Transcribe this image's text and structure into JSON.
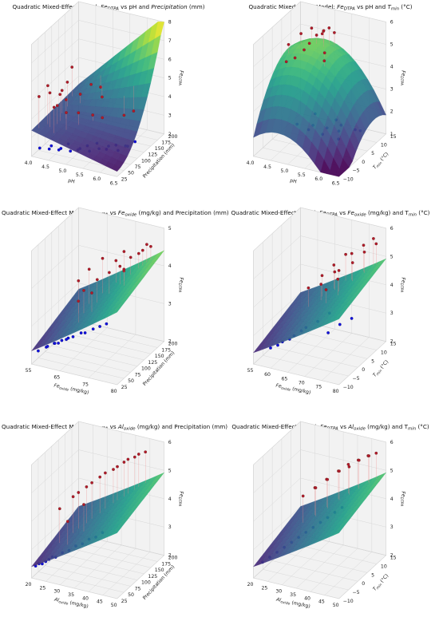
{
  "colors": {
    "red_points": "#b2182b",
    "red_points_edge": "#5a2a1a",
    "blue_points": "#1010e0",
    "teal_points": "#1f8f8f",
    "colormap": "viridis",
    "pane_fill": "#f2f2f2",
    "grid": "#d8d8d8"
  },
  "chart_data": [
    {
      "type": "surface3d",
      "title": {
        "pre": "Quadratic Mixed-Effect Model: ",
        "v1": "Fe",
        "v1sub": "DTPA",
        "mid": " vs pH and ",
        "v2": "Precipitation",
        "v2sub": "",
        "post": " (mm)"
      },
      "xlabel": "pH",
      "xlabel_sub": "",
      "xlabel_post": "",
      "ylabel": "Precipitation (mm)",
      "ylabel_sub": "",
      "ylabel_post": "",
      "zlabel": "Fe",
      "zlabel_sub": "DTPA",
      "x_ticks": [
        "4.0",
        "4.5",
        "5.0",
        "5.5",
        "6.0",
        "6.5"
      ],
      "y_ticks": [
        "25",
        "50",
        "75",
        "100",
        "125",
        "150",
        "175",
        "200"
      ],
      "z_ticks": [
        "2",
        "3",
        "4",
        "5",
        "6",
        "7",
        "8"
      ],
      "xlim": [
        4.0,
        6.5
      ],
      "ylim": [
        25,
        200
      ],
      "zlim": [
        1.5,
        8
      ],
      "surface": {
        "z_low_high_x": "quadratic",
        "corners": {
          "x0y0": 2.4,
          "x1y0": 1.8,
          "x0y1": 2.6,
          "x1y1": 7.8,
          "mid": 3.0
        }
      },
      "points": [
        {
          "group": "observed_high",
          "color": "red",
          "x": [
            4.1,
            4.2,
            4.3,
            4.4,
            4.5,
            4.3,
            4.2,
            4.6,
            4.8,
            5.0,
            5.2,
            4.4,
            4.5,
            4.7,
            4.9,
            5.4,
            5.8,
            6.0,
            4.3,
            4.6
          ],
          "y": [
            40,
            60,
            55,
            80,
            90,
            120,
            150,
            170,
            180,
            160,
            100,
            70,
            45,
            65,
            85,
            110,
            140,
            150,
            100,
            130
          ],
          "z": [
            4.8,
            5.2,
            4.9,
            4.5,
            4.1,
            4.6,
            5.0,
            3.9,
            3.7,
            3.5,
            3.4,
            4.0,
            4.3,
            3.8,
            3.6,
            3.2,
            3.1,
            3.3,
            4.4,
            3.9
          ]
        },
        {
          "group": "observed_low",
          "color": "blue",
          "x": [
            4.2,
            4.4,
            4.6,
            4.8,
            5.0,
            5.2,
            5.4,
            5.6,
            5.8,
            6.0,
            6.2,
            4.5,
            4.7,
            4.9,
            5.1,
            5.3,
            5.5,
            5.7,
            5.9,
            6.1
          ],
          "y": [
            30,
            40,
            50,
            60,
            70,
            80,
            90,
            100,
            110,
            120,
            130,
            35,
            45,
            55,
            65,
            75,
            85,
            95,
            105,
            115
          ],
          "z": [
            2.0,
            1.9,
            1.8,
            2.1,
            1.7,
            1.9,
            2.0,
            1.6,
            1.8,
            1.7,
            1.9,
            2.2,
            2.0,
            1.8,
            1.9,
            1.7,
            1.8,
            1.9,
            1.6,
            1.8
          ]
        }
      ]
    },
    {
      "type": "surface3d",
      "title": {
        "pre": "Quadratic Mixed-Effect Model: ",
        "v1": "Fe",
        "v1sub": "DTPA",
        "mid": " vs pH and ",
        "v2": "T",
        "v2sub": "min",
        "post": " (°C)"
      },
      "xlabel": "pH",
      "xlabel_sub": "",
      "xlabel_post": "",
      "ylabel": "T",
      "ylabel_sub": "min",
      "ylabel_post": " (°C)",
      "zlabel": "Fe",
      "zlabel_sub": "DTPA",
      "x_ticks": [
        "4.0",
        "4.5",
        "5.0",
        "5.5",
        "6.0",
        "6.5"
      ],
      "y_ticks": [
        "−10",
        "−5",
        "0",
        "5",
        "10",
        "15"
      ],
      "z_ticks": [
        "1",
        "2",
        "3",
        "4",
        "5",
        "6"
      ],
      "xlim": [
        4.0,
        6.5
      ],
      "ylim": [
        -10,
        15
      ],
      "zlim": [
        0.5,
        6.5
      ],
      "surface": {
        "shape": "dome",
        "peak": 5.4,
        "edge_low": 1.2
      },
      "points": [
        {
          "group": "observed_high",
          "color": "red",
          "x": [
            4.2,
            4.4,
            4.6,
            4.8,
            5.0,
            5.2,
            4.5,
            4.7,
            4.9,
            5.1,
            5.3,
            4.3,
            4.6,
            4.8,
            5.0
          ],
          "y": [
            5,
            8,
            10,
            12,
            9,
            6,
            3,
            7,
            11,
            13,
            4,
            2,
            6,
            9,
            12
          ],
          "z": [
            5.2,
            5.6,
            5.8,
            5.4,
            5.9,
            5.1,
            4.8,
            5.3,
            5.7,
            5.5,
            4.9,
            4.6,
            5.0,
            5.6,
            5.8
          ]
        },
        {
          "group": "observed_low",
          "color": "blue",
          "x": [
            5.0,
            5.3,
            5.6,
            5.9,
            6.2,
            5.5,
            5.8,
            6.1,
            5.2,
            5.7,
            6.0,
            6.3
          ],
          "y": [
            -5,
            -2,
            0,
            2,
            4,
            -8,
            -6,
            -3,
            1,
            3,
            -1,
            5
          ],
          "z": [
            2.2,
            2.0,
            1.8,
            1.9,
            1.6,
            2.4,
            2.1,
            1.7,
            2.3,
            2.0,
            1.9,
            1.5
          ]
        }
      ]
    },
    {
      "type": "surface3d",
      "title": {
        "pre": "Quadratic Mixed-Effect Model: ",
        "v1": "Fe",
        "v1sub": "DTPA",
        "mid": " vs ",
        "v2": "Fe",
        "v2sub": "oxide",
        "post": " (mg/kg) and Precipitation (mm)"
      },
      "xlabel": "Fe",
      "xlabel_sub": "oxide",
      "xlabel_post": " (mg/kg)",
      "ylabel": "Precipitation (mm)",
      "ylabel_sub": "",
      "ylabel_post": "",
      "zlabel": "Fe",
      "zlabel_sub": "DTPA",
      "x_ticks": [
        "55",
        "65",
        "75",
        "80"
      ],
      "y_ticks": [
        "25",
        "50",
        "75",
        "100",
        "125",
        "150",
        "175",
        "200"
      ],
      "z_ticks": [
        "2",
        "3",
        "4",
        "5"
      ],
      "xlim": [
        50,
        82
      ],
      "ylim": [
        25,
        200
      ],
      "zlim": [
        1.5,
        5.8
      ],
      "surface": {
        "shape": "plane",
        "low": 2.0,
        "high": 4.8
      },
      "points": [
        {
          "group": "observed_high",
          "color": "red",
          "x": [
            60,
            62,
            65,
            68,
            70,
            72,
            74,
            76,
            78,
            63,
            66,
            69,
            71,
            73,
            75,
            77,
            64,
            67
          ],
          "y": [
            100,
            120,
            140,
            160,
            170,
            150,
            130,
            180,
            190,
            90,
            110,
            125,
            145,
            165,
            175,
            185,
            60,
            80
          ],
          "z": [
            4.2,
            4.5,
            4.8,
            4.6,
            4.9,
            4.4,
            4.7,
            5.0,
            5.1,
            4.0,
            4.3,
            4.5,
            4.6,
            4.8,
            4.9,
            5.2,
            3.9,
            4.1
          ]
        },
        {
          "group": "observed_low",
          "color": "blue",
          "x": [
            52,
            54,
            56,
            58,
            60,
            62,
            64,
            66,
            68,
            70,
            72,
            55,
            57,
            59,
            61
          ],
          "y": [
            30,
            40,
            50,
            45,
            55,
            60,
            70,
            65,
            75,
            80,
            85,
            35,
            42,
            48,
            52
          ],
          "z": [
            2.0,
            2.1,
            2.2,
            2.3,
            2.4,
            2.5,
            2.6,
            2.7,
            2.8,
            2.9,
            3.0,
            2.2,
            2.3,
            2.4,
            2.5
          ]
        }
      ]
    },
    {
      "type": "surface3d",
      "title": {
        "pre": "Quadratic Mixed-Effect Model: ",
        "v1": "Fe",
        "v1sub": "DTPA",
        "mid": " vs ",
        "v2": "Fe",
        "v2sub": "oxide",
        "post": " (mg/kg) and T"
      },
      "title_tail": {
        "v": "",
        "sub": "min",
        "post": " (°C)"
      },
      "xlabel": "Fe",
      "xlabel_sub": "oxide",
      "xlabel_post": " (mg/kg)",
      "ylabel": "T",
      "ylabel_sub": "min",
      "ylabel_post": " (°C)",
      "zlabel": "Fe",
      "zlabel_sub": "DTPA",
      "x_ticks": [
        "55",
        "60",
        "65",
        "70",
        "75",
        "80"
      ],
      "y_ticks": [
        "−10",
        "−5",
        "0",
        "5",
        "10",
        "15"
      ],
      "z_ticks": [
        "2",
        "3",
        "4",
        "5",
        "6"
      ],
      "xlim": [
        50,
        82
      ],
      "ylim": [
        -10,
        15
      ],
      "zlim": [
        1.5,
        6.5
      ],
      "surface": {
        "shape": "plane",
        "low": 2.0,
        "high": 5.0
      },
      "points": [
        {
          "group": "observed_high",
          "color": "red",
          "x": [
            60,
            63,
            66,
            69,
            72,
            75,
            78,
            64,
            67,
            70,
            73,
            76,
            79,
            68,
            71
          ],
          "y": [
            5,
            8,
            10,
            12,
            11,
            13,
            14,
            6,
            9,
            7,
            10,
            12,
            14,
            3,
            5
          ],
          "z": [
            4.0,
            4.4,
            4.8,
            5.2,
            5.4,
            5.7,
            6.0,
            4.2,
            4.6,
            4.9,
            5.1,
            5.5,
            5.8,
            4.3,
            4.7
          ]
        },
        {
          "group": "observed_low",
          "color": "blue",
          "x": [
            55,
            58,
            61,
            64,
            67,
            70,
            73,
            76,
            79,
            57,
            60,
            63
          ],
          "y": [
            -8,
            -6,
            -4,
            -2,
            0,
            2,
            -3,
            -1,
            1,
            -7,
            -5,
            -3
          ],
          "z": [
            2.2,
            2.4,
            2.6,
            2.9,
            3.1,
            3.4,
            3.0,
            3.3,
            3.5,
            2.3,
            2.5,
            2.8
          ]
        }
      ]
    },
    {
      "type": "surface3d",
      "title": {
        "pre": "Quadratic Mixed-Effect Model: ",
        "v1": "Fe",
        "v1sub": "DTPA",
        "mid": " vs ",
        "v2": "Al",
        "v2sub": "oxide",
        "post": " (mg/kg) and Precipitation (mm)"
      },
      "xlabel": "Al",
      "xlabel_sub": "oxide",
      "xlabel_post": " (mg/kg)",
      "ylabel": "Precipitation (mm)",
      "ylabel_sub": "",
      "ylabel_post": "",
      "zlabel": "Fe",
      "zlabel_sub": "DTPA",
      "x_ticks": [
        "20",
        "25",
        "30",
        "35",
        "40",
        "45",
        "50"
      ],
      "y_ticks": [
        "25",
        "50",
        "75",
        "100",
        "125",
        "150",
        "175",
        "200"
      ],
      "z_ticks": [
        "2",
        "3",
        "4",
        "5",
        "6"
      ],
      "xlim": [
        20,
        52
      ],
      "ylim": [
        25,
        200
      ],
      "zlim": [
        1.5,
        6.5
      ],
      "surface": {
        "shape": "plane",
        "low": 2.0,
        "high": 5.0
      },
      "points": [
        {
          "group": "observed_high",
          "color": "red",
          "x": [
            25,
            28,
            31,
            34,
            37,
            40,
            43,
            46,
            29,
            32,
            35,
            38,
            41,
            44,
            30,
            33
          ],
          "y": [
            80,
            100,
            120,
            140,
            160,
            170,
            180,
            190,
            110,
            130,
            150,
            165,
            175,
            185,
            60,
            90
          ],
          "z": [
            4.1,
            4.5,
            4.8,
            5.1,
            5.3,
            5.6,
            5.8,
            6.0,
            4.6,
            4.9,
            5.2,
            5.4,
            5.7,
            5.9,
            3.9,
            4.4
          ]
        },
        {
          "group": "observed_low",
          "color": "blue",
          "x": [
            21,
            23,
            25,
            27,
            29,
            31,
            33,
            35,
            37,
            39,
            41,
            22,
            24,
            26
          ],
          "y": [
            30,
            35,
            40,
            45,
            50,
            55,
            60,
            65,
            70,
            75,
            80,
            33,
            38,
            43
          ],
          "z": [
            2.0,
            2.1,
            2.3,
            2.4,
            2.6,
            2.7,
            2.9,
            3.0,
            3.2,
            3.3,
            3.5,
            2.1,
            2.2,
            2.4
          ]
        }
      ]
    },
    {
      "type": "surface3d",
      "title": {
        "pre": "Quadratic Mixed-Effect Model: ",
        "v1": "Fe",
        "v1sub": "DTPA",
        "mid": " vs ",
        "v2": "Al",
        "v2sub": "oxide",
        "post": " (mg/kg) and T"
      },
      "title_tail": {
        "v": "",
        "sub": "min",
        "post": " (°C)"
      },
      "xlabel": "Al",
      "xlabel_sub": "oxide",
      "xlabel_post": " (mg/kg)",
      "ylabel": "T",
      "ylabel_sub": "min",
      "ylabel_post": " (°C)",
      "zlabel": "Fe",
      "zlabel_sub": "DTPA",
      "x_ticks": [
        "20",
        "25",
        "30",
        "35",
        "40",
        "45",
        "50"
      ],
      "y_ticks": [
        "−10",
        "−5",
        "0",
        "5",
        "10",
        "15"
      ],
      "z_ticks": [
        "2",
        "3",
        "4",
        "5",
        "6"
      ],
      "xlim": [
        20,
        52
      ],
      "ylim": [
        -10,
        15
      ],
      "zlim": [
        1.5,
        6.5
      ],
      "surface": {
        "shape": "plane",
        "low": 2.0,
        "high": 5.0
      },
      "points": [
        {
          "group": "observed_high",
          "color": "red",
          "x": [
            28,
            31,
            34,
            37,
            40,
            43,
            46,
            49,
            32,
            35,
            38,
            41,
            44,
            47
          ],
          "y": [
            5,
            7,
            9,
            11,
            12,
            13,
            14,
            14,
            6,
            8,
            10,
            11,
            12,
            13
          ],
          "z": [
            4.2,
            4.5,
            4.8,
            5.1,
            5.4,
            5.6,
            5.8,
            6.0,
            4.6,
            4.9,
            5.2,
            5.4,
            5.7,
            5.9
          ]
        },
        {
          "group": "observed_low",
          "color": "blue",
          "x": [
            22,
            24,
            26,
            28,
            30,
            32,
            34,
            36,
            38,
            40,
            42,
            44
          ],
          "y": [
            -8,
            -7,
            -6,
            -5,
            -4,
            -3,
            -2,
            -1,
            0,
            1,
            2,
            3
          ],
          "z": [
            2.1,
            2.3,
            2.5,
            2.7,
            2.9,
            3.1,
            3.3,
            3.5,
            3.7,
            3.9,
            4.1,
            4.3
          ]
        }
      ]
    }
  ]
}
